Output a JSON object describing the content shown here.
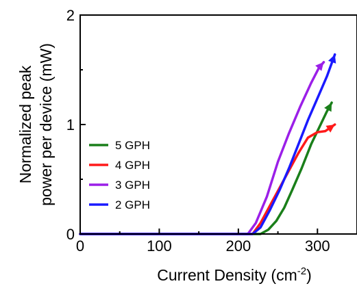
{
  "chart_data": {
    "type": "line",
    "xlabel": "Current Density (cm",
    "xlabel_superscript": "-2",
    "xlabel_suffix": ")",
    "ylabel_line1": "Normalized peak",
    "ylabel_line2": "power per device (mW)",
    "xlim": [
      0,
      350
    ],
    "ylim": [
      0,
      2
    ],
    "x_ticks": [
      0,
      100,
      200,
      300
    ],
    "y_ticks": [
      0,
      1,
      2
    ],
    "x_tick_labels": [
      "0",
      "100",
      "200",
      "300"
    ],
    "y_tick_labels": [
      "0",
      "1",
      "2"
    ],
    "grid": false,
    "legend_position": "center-left",
    "series": [
      {
        "name": "5 GPH",
        "color": "#1a7f1a",
        "x": [
          0,
          100,
          200,
          228,
          238,
          248,
          258,
          268,
          280,
          292,
          304,
          312,
          318
        ],
        "y": [
          0,
          0,
          0,
          0,
          0.04,
          0.12,
          0.24,
          0.4,
          0.6,
          0.82,
          1.0,
          1.12,
          1.2
        ]
      },
      {
        "name": "4 GPH",
        "color": "#ff1a1a",
        "x": [
          0,
          100,
          200,
          218,
          228,
          240,
          252,
          264,
          276,
          288,
          300,
          310,
          318,
          322
        ],
        "y": [
          0,
          0,
          0,
          0,
          0.1,
          0.26,
          0.42,
          0.58,
          0.74,
          0.88,
          0.93,
          0.94,
          0.98,
          1.0
        ]
      },
      {
        "name": "3 GPH",
        "color": "#9b1fe8",
        "x": [
          0,
          100,
          200,
          212,
          222,
          236,
          250,
          264,
          278,
          292,
          302,
          308
        ],
        "y": [
          0,
          0,
          0,
          0,
          0.1,
          0.34,
          0.66,
          0.92,
          1.16,
          1.38,
          1.52,
          1.57
        ]
      },
      {
        "name": "2 GPH",
        "color": "#1a1aff",
        "x": [
          0,
          100,
          200,
          218,
          228,
          240,
          252,
          264,
          276,
          288,
          300,
          312,
          322
        ],
        "y": [
          0,
          0,
          0,
          0,
          0.06,
          0.22,
          0.4,
          0.6,
          0.82,
          1.04,
          1.24,
          1.44,
          1.64
        ]
      }
    ]
  }
}
